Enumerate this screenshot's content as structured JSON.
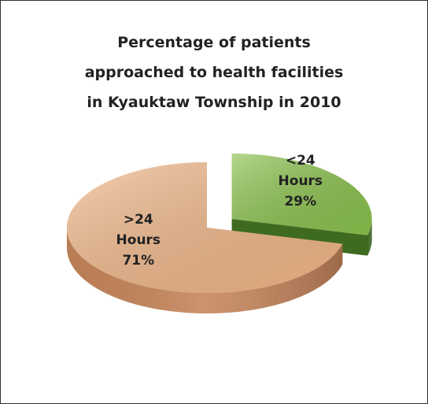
{
  "chart_data": {
    "type": "pie",
    "title": "Percentage of patients\napproached to health facilities\nin Kyauktaw Township in 2010",
    "categories": [
      "<24\nHours",
      ">24\nHours"
    ],
    "values": [
      29,
      71
    ],
    "value_labels": [
      "29%",
      "71%"
    ],
    "colors": [
      "#8cc34e",
      "#f3b98a"
    ],
    "side_colors": [
      "#3f6b20",
      "#c4845a"
    ],
    "exploded": [
      true,
      false
    ]
  }
}
